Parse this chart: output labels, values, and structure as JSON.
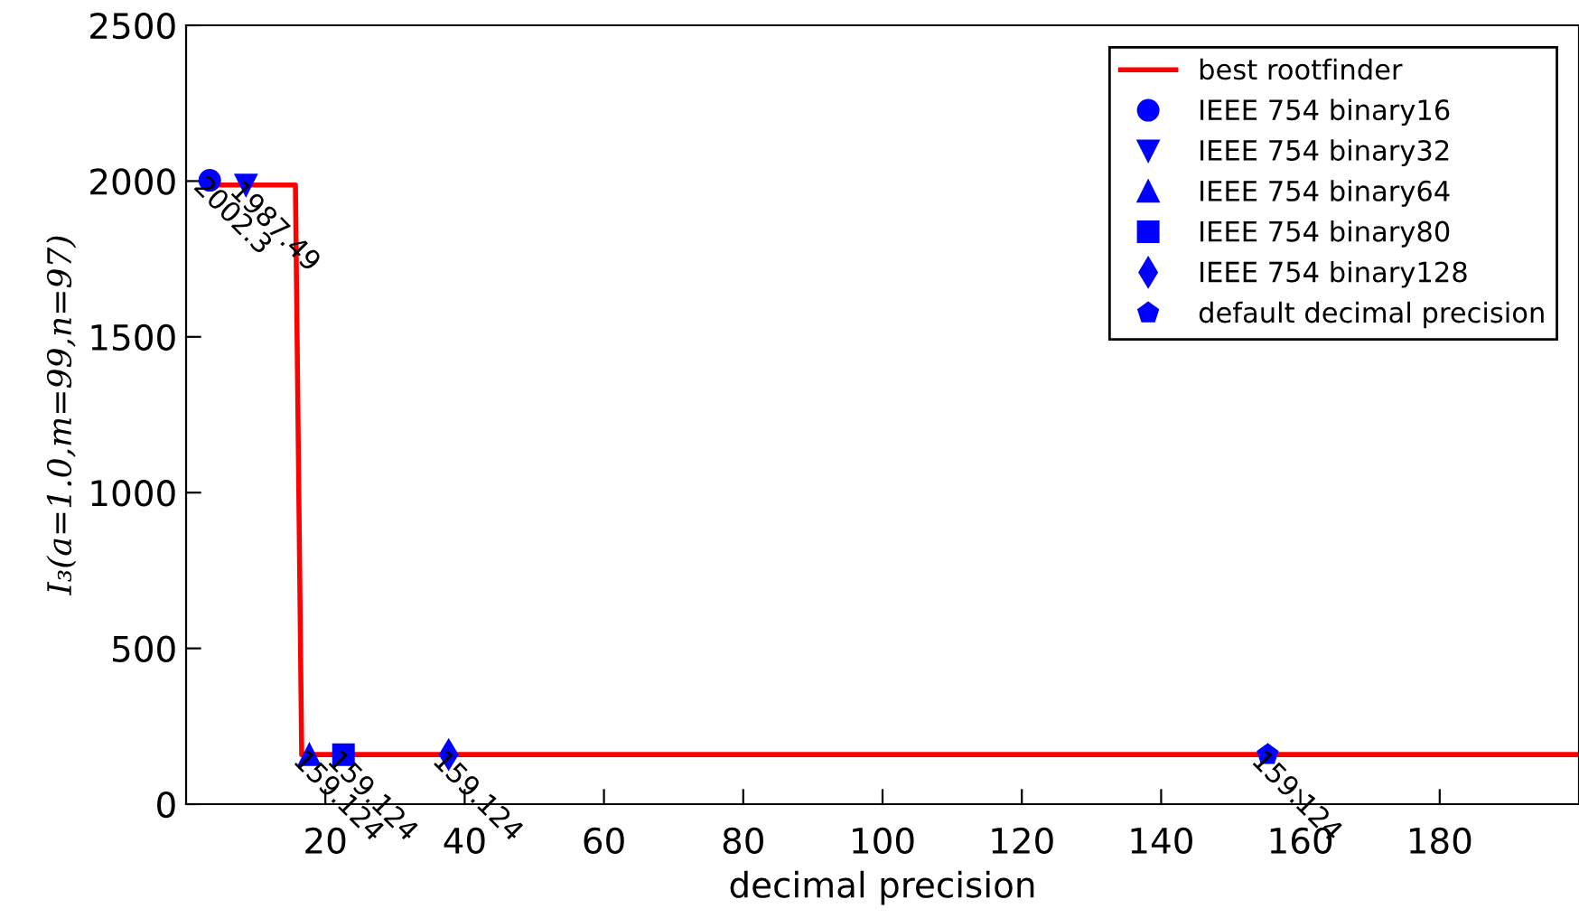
{
  "chart_data": {
    "type": "scatter",
    "xlabel": "decimal precision",
    "ylabel": "I₃(a=1.0,m=99,n=97)",
    "xlim": [
      0,
      200
    ],
    "ylim": [
      0,
      2500
    ],
    "xticks": [
      20,
      40,
      60,
      80,
      100,
      120,
      140,
      160,
      180
    ],
    "yticks": [
      0,
      500,
      1000,
      1500,
      2000,
      2500
    ],
    "legend": "top right",
    "grid": false,
    "series": [
      {
        "name": "best rootfinder",
        "type": "line",
        "color": "#ff0000",
        "marker": "none",
        "x": [
          3.4,
          15.7,
          16.6,
          200
        ],
        "values": [
          1987.49,
          1987.49,
          159.124,
          159.124
        ],
        "value_labels": [
          null,
          null,
          null,
          null
        ]
      },
      {
        "name": "IEEE 754 binary16",
        "color": "#0000ff",
        "marker": "circle",
        "x": [
          3.4
        ],
        "values": [
          2002.3
        ],
        "value_labels": [
          "2002.3"
        ]
      },
      {
        "name": "IEEE 754 binary32",
        "color": "#0000ff",
        "marker": "triangle_down",
        "x": [
          8.6
        ],
        "values": [
          1987.49
        ],
        "value_labels": [
          "1987.49"
        ]
      },
      {
        "name": "IEEE 754 binary64",
        "color": "#0000ff",
        "marker": "triangle",
        "x": [
          17.7
        ],
        "values": [
          159.124
        ],
        "value_labels": [
          "159.124"
        ]
      },
      {
        "name": "IEEE 754 binary80",
        "color": "#0000ff",
        "marker": "square",
        "x": [
          22.6
        ],
        "values": [
          159.124
        ],
        "value_labels": [
          "159.124"
        ]
      },
      {
        "name": "IEEE 754 binary128",
        "color": "#0000ff",
        "marker": "diamond",
        "x": [
          37.7
        ],
        "values": [
          159.124
        ],
        "value_labels": [
          "159.124"
        ]
      },
      {
        "name": "default decimal precision",
        "color": "#0000ff",
        "x": [
          155.3
        ],
        "values": [
          159.124
        ],
        "value_labels": [
          "159.124"
        ]
      }
    ]
  }
}
